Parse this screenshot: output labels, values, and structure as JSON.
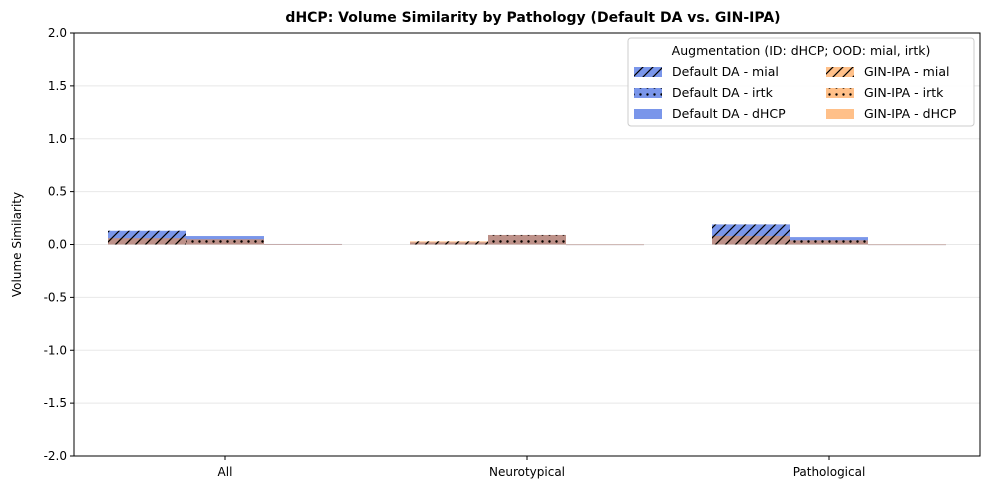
{
  "chart_data": {
    "type": "bar",
    "title": "dHCP: Volume Similarity by Pathology (Default DA vs. GIN-IPA)",
    "xlabel": "",
    "ylabel": "Volume Similarity",
    "ylim": [
      -2.0,
      2.0
    ],
    "yticks": [
      "-2.0",
      "-1.5",
      "-1.0",
      "-0.5",
      "0.0",
      "0.5",
      "1.0",
      "1.5",
      "2.0"
    ],
    "categories": [
      "All",
      "Neurotypical",
      "Pathological"
    ],
    "grid": "horizontal",
    "legend": {
      "title": "Augmentation (ID: dHCP; OOD: mial, irtk)",
      "placement": "top-right",
      "columns": 2
    },
    "series": [
      {
        "name": "Default DA - mial",
        "method": "Default DA",
        "dataset": "mial",
        "color": "#4169e1",
        "pattern": "hatch",
        "values": [
          0.13,
          0.02,
          0.19
        ]
      },
      {
        "name": "Default DA - irtk",
        "method": "Default DA",
        "dataset": "irtk",
        "color": "#4169e1",
        "pattern": "dots",
        "values": [
          0.08,
          0.09,
          0.07
        ]
      },
      {
        "name": "Default DA - dHCP",
        "method": "Default DA",
        "dataset": "dHCP",
        "color": "#4169e1",
        "pattern": "none",
        "values": [
          0.005,
          0.0,
          0.0
        ]
      },
      {
        "name": "GIN-IPA - mial",
        "method": "GIN-IPA",
        "dataset": "mial",
        "color": "#ff8c28",
        "pattern": "hatch",
        "values": [
          0.06,
          0.03,
          0.08
        ]
      },
      {
        "name": "GIN-IPA - irtk",
        "method": "GIN-IPA",
        "dataset": "irtk",
        "color": "#ff8c28",
        "pattern": "dots",
        "values": [
          0.05,
          0.09,
          0.04
        ]
      },
      {
        "name": "GIN-IPA - dHCP",
        "method": "GIN-IPA",
        "dataset": "dHCP",
        "color": "#ff8c28",
        "pattern": "none",
        "values": [
          0.004,
          0.0,
          0.0
        ]
      }
    ]
  }
}
